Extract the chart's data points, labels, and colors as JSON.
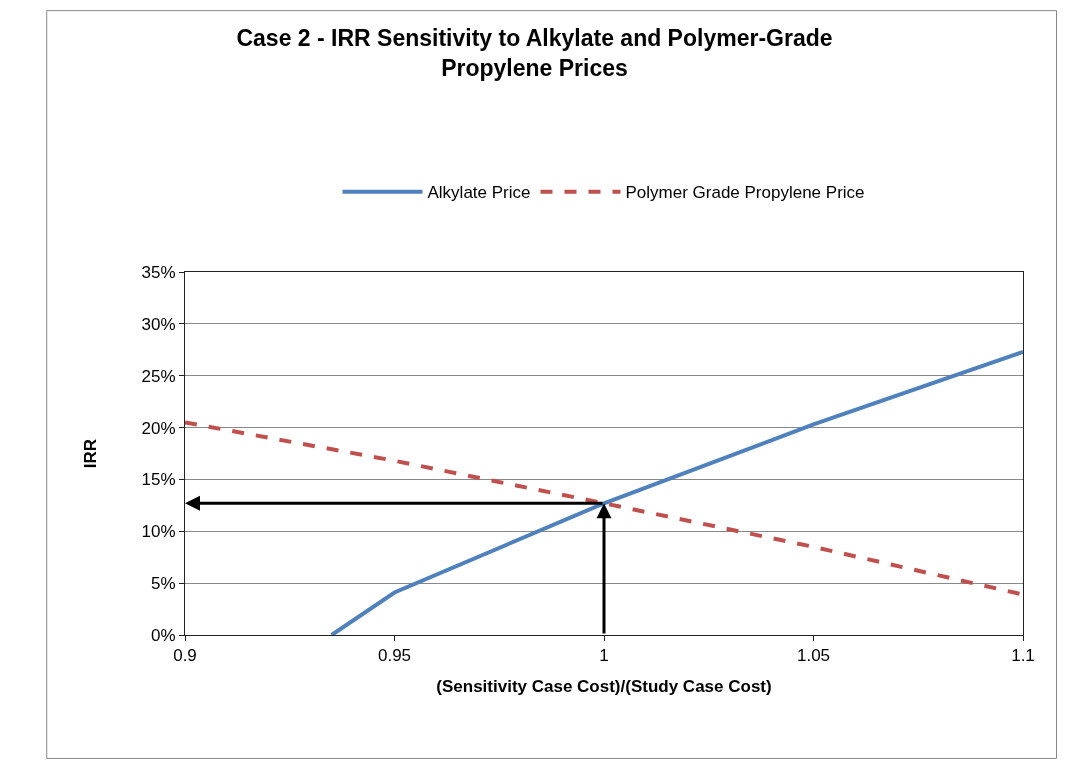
{
  "chart_data": {
    "type": "line",
    "title": "Case 2 - IRR Sensitivity to Alkylate and Polymer-Grade\nPropylene Prices",
    "xlabel": "(Sensitivity Case Cost)/(Study Case Cost)",
    "ylabel": "IRR",
    "series": [
      {
        "name": "Alkylate Price",
        "color": "#4f81bd",
        "line_style": "solid",
        "x": [
          0.935,
          0.95,
          1.0,
          1.05,
          1.1
        ],
        "values": [
          0,
          4.1,
          12.7,
          20.3,
          27.3
        ]
      },
      {
        "name": "Polymer Grade Propylene Price",
        "color": "#c0504d",
        "line_style": "dashed",
        "x": [
          0.9,
          0.95,
          1.0,
          1.05,
          1.1
        ],
        "values": [
          20.5,
          16.8,
          12.7,
          8.5,
          3.9
        ]
      }
    ],
    "xlim": [
      0.9,
      1.1
    ],
    "xticks": [
      0.9,
      0.95,
      1,
      1.05,
      1.1
    ],
    "ylim": [
      0,
      35
    ],
    "yticks": [
      {
        "value": 0,
        "label": "0%"
      },
      {
        "value": 5,
        "label": "5%"
      },
      {
        "value": 10,
        "label": "10%"
      },
      {
        "value": 15,
        "label": "15%"
      },
      {
        "value": 20,
        "label": "20%"
      },
      {
        "value": 25,
        "label": "25%"
      },
      {
        "value": 30,
        "label": "30%"
      },
      {
        "value": 35,
        "label": "35%"
      }
    ],
    "grid": "y",
    "legend": "top",
    "marker": "none"
  }
}
